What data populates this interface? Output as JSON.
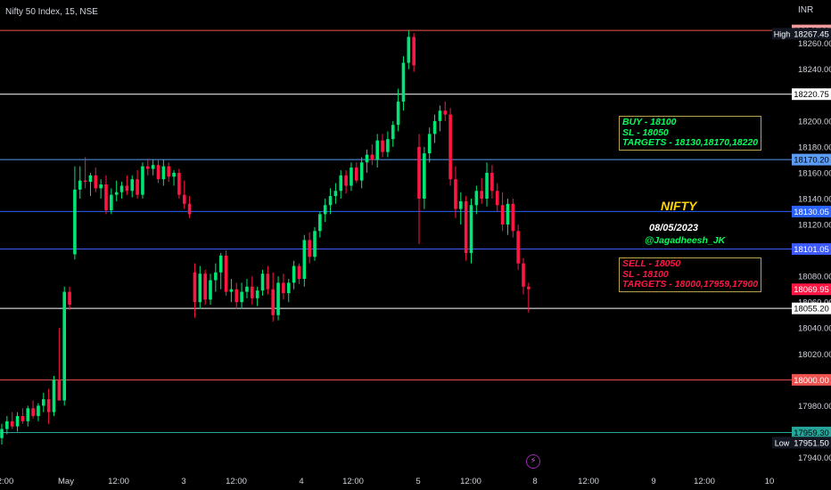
{
  "header": {
    "symbol": "Nifty 50 Index, 15, NSE",
    "currency": "INR"
  },
  "colors": {
    "up": "#00e676",
    "down": "#ff1744",
    "axis_text": "#d1d4dc",
    "buy": "#00ff5a",
    "sell": "#ff1744",
    "title": "#ffd600"
  },
  "chart_data": {
    "type": "candlestick",
    "ylim": [
      17930,
      18277
    ],
    "yticks": [
      "18260.00",
      "18240.00",
      "18220.00",
      "18200.00",
      "18180.00",
      "18160.00",
      "18140.00",
      "18120.00",
      "18100.00",
      "18080.00",
      "18060.00",
      "18040.00",
      "18020.00",
      "18000.00",
      "17980.00",
      "17960.00",
      "17940.00"
    ],
    "xticks": [
      "2:00",
      "May",
      "12:00",
      "3",
      "12:00",
      "4",
      "12:00",
      "5",
      "12:00",
      "8",
      "12:00",
      "9",
      "12:00",
      "10"
    ],
    "level_lines": [
      {
        "price": 18270.0,
        "label": "18270.00",
        "color": "#ef5350",
        "label_bg": "#ef9a9a",
        "label_color": "#000"
      },
      {
        "price": 18220.75,
        "label": "18220.75",
        "color": "#ffffff",
        "label_bg": "#ffffff",
        "label_color": "#000"
      },
      {
        "price": 18170.2,
        "label": "18170.20",
        "color": "#5b9cf6",
        "label_bg": "#5b9cf6",
        "label_color": "#000"
      },
      {
        "price": 18130.05,
        "label": "18130.05",
        "color": "#2962ff",
        "label_bg": "#2962ff",
        "label_color": "#fff"
      },
      {
        "price": 18101.05,
        "label": "18101.05",
        "color": "#3d5afe",
        "label_bg": "#3d5afe",
        "label_color": "#fff"
      },
      {
        "price": 18055.2,
        "label": "18055.20",
        "color": "#ffffff",
        "label_bg": "#ffffff",
        "label_color": "#000"
      },
      {
        "price": 18000.0,
        "label": "18000.00",
        "color": "#ef5350",
        "label_bg": "#ef5350",
        "label_color": "#fff"
      },
      {
        "price": 17959.3,
        "label": "17959.30",
        "color": "#26a69a",
        "label_bg": "#26a69a",
        "label_color": "#000"
      }
    ],
    "price_tags": [
      {
        "name": "High",
        "price": 18267.45,
        "label": "18267.45",
        "bg": "#131722",
        "color": "#fff"
      },
      {
        "name": "",
        "price": 18069.95,
        "label": "18069.95",
        "bg": "#ff1744",
        "color": "#fff"
      },
      {
        "name": "Low",
        "price": 17951.5,
        "label": "17951.50",
        "bg": "#131722",
        "color": "#fff"
      }
    ],
    "candles": [
      {
        "o": 17955,
        "h": 17966,
        "l": 17950,
        "c": 17962
      },
      {
        "o": 17962,
        "h": 17972,
        "l": 17958,
        "c": 17968
      },
      {
        "o": 17968,
        "h": 17975,
        "l": 17962,
        "c": 17964
      },
      {
        "o": 17964,
        "h": 17975,
        "l": 17960,
        "c": 17972
      },
      {
        "o": 17972,
        "h": 17978,
        "l": 17966,
        "c": 17968
      },
      {
        "o": 17968,
        "h": 17980,
        "l": 17964,
        "c": 17978
      },
      {
        "o": 17978,
        "h": 17984,
        "l": 17970,
        "c": 17972
      },
      {
        "o": 17972,
        "h": 17982,
        "l": 17968,
        "c": 17980
      },
      {
        "o": 17980,
        "h": 17990,
        "l": 17975,
        "c": 17985
      },
      {
        "o": 17985,
        "h": 17993,
        "l": 17966,
        "c": 17975
      },
      {
        "o": 17975,
        "h": 18003,
        "l": 17972,
        "c": 18000
      },
      {
        "o": 18000,
        "h": 18040,
        "l": 17985,
        "c": 17984
      },
      {
        "o": 17984,
        "h": 18072,
        "l": 17980,
        "c": 18068
      },
      {
        "o": 18068,
        "h": 18072,
        "l": 18054,
        "c": 18058
      },
      {
        "o": 18097,
        "h": 18165,
        "l": 18093,
        "c": 18147
      },
      {
        "o": 18147,
        "h": 18165,
        "l": 18140,
        "c": 18154
      },
      {
        "o": 18154,
        "h": 18172,
        "l": 18148,
        "c": 18153
      },
      {
        "o": 18153,
        "h": 18160,
        "l": 18142,
        "c": 18158
      },
      {
        "o": 18158,
        "h": 18164,
        "l": 18145,
        "c": 18148
      },
      {
        "o": 18148,
        "h": 18155,
        "l": 18140,
        "c": 18151
      },
      {
        "o": 18151,
        "h": 18158,
        "l": 18128,
        "c": 18131
      },
      {
        "o": 18131,
        "h": 18148,
        "l": 18128,
        "c": 18143
      },
      {
        "o": 18143,
        "h": 18154,
        "l": 18138,
        "c": 18145
      },
      {
        "o": 18145,
        "h": 18153,
        "l": 18140,
        "c": 18150
      },
      {
        "o": 18150,
        "h": 18158,
        "l": 18143,
        "c": 18146
      },
      {
        "o": 18146,
        "h": 18158,
        "l": 18141,
        "c": 18155
      },
      {
        "o": 18155,
        "h": 18162,
        "l": 18140,
        "c": 18143
      },
      {
        "o": 18143,
        "h": 18168,
        "l": 18140,
        "c": 18165
      },
      {
        "o": 18165,
        "h": 18171,
        "l": 18158,
        "c": 18163
      },
      {
        "o": 18163,
        "h": 18170,
        "l": 18158,
        "c": 18166
      },
      {
        "o": 18166,
        "h": 18170,
        "l": 18152,
        "c": 18155
      },
      {
        "o": 18155,
        "h": 18170,
        "l": 18150,
        "c": 18165
      },
      {
        "o": 18165,
        "h": 18168,
        "l": 18153,
        "c": 18157
      },
      {
        "o": 18157,
        "h": 18162,
        "l": 18150,
        "c": 18160
      },
      {
        "o": 18160,
        "h": 18163,
        "l": 18140,
        "c": 18143
      },
      {
        "o": 18143,
        "h": 18154,
        "l": 18132,
        "c": 18136
      },
      {
        "o": 18136,
        "h": 18142,
        "l": 18125,
        "c": 18128
      },
      {
        "o": 18083,
        "h": 18090,
        "l": 18048,
        "c": 18060
      },
      {
        "o": 18060,
        "h": 18088,
        "l": 18055,
        "c": 18082
      },
      {
        "o": 18082,
        "h": 18085,
        "l": 18058,
        "c": 18062
      },
      {
        "o": 18062,
        "h": 18082,
        "l": 18058,
        "c": 18077
      },
      {
        "o": 18077,
        "h": 18090,
        "l": 18068,
        "c": 18083
      },
      {
        "o": 18083,
        "h": 18098,
        "l": 18070,
        "c": 18096
      },
      {
        "o": 18096,
        "h": 18100,
        "l": 18065,
        "c": 18068
      },
      {
        "o": 18068,
        "h": 18078,
        "l": 18060,
        "c": 18070
      },
      {
        "o": 18070,
        "h": 18075,
        "l": 18055,
        "c": 18060
      },
      {
        "o": 18060,
        "h": 18075,
        "l": 18055,
        "c": 18068
      },
      {
        "o": 18068,
        "h": 18078,
        "l": 18063,
        "c": 18072
      },
      {
        "o": 18072,
        "h": 18080,
        "l": 18058,
        "c": 18063
      },
      {
        "o": 18063,
        "h": 18072,
        "l": 18057,
        "c": 18069
      },
      {
        "o": 18069,
        "h": 18085,
        "l": 18065,
        "c": 18082
      },
      {
        "o": 18082,
        "h": 18088,
        "l": 18066,
        "c": 18070
      },
      {
        "o": 18070,
        "h": 18083,
        "l": 18045,
        "c": 18050
      },
      {
        "o": 18050,
        "h": 18080,
        "l": 18046,
        "c": 18075
      },
      {
        "o": 18075,
        "h": 18082,
        "l": 18062,
        "c": 18067
      },
      {
        "o": 18067,
        "h": 18078,
        "l": 18060,
        "c": 18075
      },
      {
        "o": 18075,
        "h": 18092,
        "l": 18070,
        "c": 18088
      },
      {
        "o": 18088,
        "h": 18090,
        "l": 18074,
        "c": 18078
      },
      {
        "o": 18078,
        "h": 18112,
        "l": 18072,
        "c": 18108
      },
      {
        "o": 18108,
        "h": 18114,
        "l": 18090,
        "c": 18095
      },
      {
        "o": 18095,
        "h": 18118,
        "l": 18092,
        "c": 18115
      },
      {
        "o": 18115,
        "h": 18130,
        "l": 18110,
        "c": 18128
      },
      {
        "o": 18128,
        "h": 18140,
        "l": 18122,
        "c": 18135
      },
      {
        "o": 18135,
        "h": 18148,
        "l": 18128,
        "c": 18142
      },
      {
        "o": 18142,
        "h": 18152,
        "l": 18136,
        "c": 18146
      },
      {
        "o": 18146,
        "h": 18162,
        "l": 18140,
        "c": 18158
      },
      {
        "o": 18158,
        "h": 18162,
        "l": 18144,
        "c": 18150
      },
      {
        "o": 18150,
        "h": 18168,
        "l": 18146,
        "c": 18164
      },
      {
        "o": 18164,
        "h": 18168,
        "l": 18152,
        "c": 18154
      },
      {
        "o": 18154,
        "h": 18172,
        "l": 18148,
        "c": 18168
      },
      {
        "o": 18168,
        "h": 18178,
        "l": 18160,
        "c": 18174
      },
      {
        "o": 18174,
        "h": 18182,
        "l": 18166,
        "c": 18170
      },
      {
        "o": 18170,
        "h": 18190,
        "l": 18164,
        "c": 18185
      },
      {
        "o": 18185,
        "h": 18190,
        "l": 18172,
        "c": 18176
      },
      {
        "o": 18176,
        "h": 18192,
        "l": 18172,
        "c": 18186
      },
      {
        "o": 18186,
        "h": 18200,
        "l": 18180,
        "c": 18197
      },
      {
        "o": 18197,
        "h": 18225,
        "l": 18192,
        "c": 18215
      },
      {
        "o": 18215,
        "h": 18250,
        "l": 18208,
        "c": 18245
      },
      {
        "o": 18245,
        "h": 18270,
        "l": 18240,
        "c": 18265
      },
      {
        "o": 18265,
        "h": 18268,
        "l": 18238,
        "c": 18243
      },
      {
        "o": 18180,
        "h": 18190,
        "l": 18105,
        "c": 18140
      },
      {
        "o": 18140,
        "h": 18180,
        "l": 18132,
        "c": 18175
      },
      {
        "o": 18175,
        "h": 18195,
        "l": 18168,
        "c": 18190
      },
      {
        "o": 18190,
        "h": 18205,
        "l": 18183,
        "c": 18200
      },
      {
        "o": 18200,
        "h": 18212,
        "l": 18192,
        "c": 18208
      },
      {
        "o": 18208,
        "h": 18215,
        "l": 18200,
        "c": 18205
      },
      {
        "o": 18205,
        "h": 18210,
        "l": 18150,
        "c": 18155
      },
      {
        "o": 18155,
        "h": 18165,
        "l": 18125,
        "c": 18132
      },
      {
        "o": 18132,
        "h": 18145,
        "l": 18120,
        "c": 18138
      },
      {
        "o": 18138,
        "h": 18142,
        "l": 18092,
        "c": 18098
      },
      {
        "o": 18098,
        "h": 18140,
        "l": 18090,
        "c": 18135
      },
      {
        "o": 18135,
        "h": 18150,
        "l": 18128,
        "c": 18146
      },
      {
        "o": 18146,
        "h": 18156,
        "l": 18136,
        "c": 18140
      },
      {
        "o": 18140,
        "h": 18168,
        "l": 18134,
        "c": 18160
      },
      {
        "o": 18160,
        "h": 18166,
        "l": 18140,
        "c": 18146
      },
      {
        "o": 18146,
        "h": 18152,
        "l": 18130,
        "c": 18135
      },
      {
        "o": 18135,
        "h": 18145,
        "l": 18115,
        "c": 18120
      },
      {
        "o": 18120,
        "h": 18140,
        "l": 18112,
        "c": 18136
      },
      {
        "o": 18136,
        "h": 18140,
        "l": 18110,
        "c": 18115
      },
      {
        "o": 18115,
        "h": 18120,
        "l": 18085,
        "c": 18090
      },
      {
        "o": 18090,
        "h": 18094,
        "l": 18066,
        "c": 18072
      },
      {
        "o": 18072,
        "h": 18075,
        "l": 18052,
        "c": 18070
      }
    ]
  },
  "annotations": {
    "buy_lines": [
      "BUY - 18100",
      "SL - 18050",
      "TARGETS - 18130,18170,18220"
    ],
    "sell_lines": [
      "SELL - 18050",
      "SL - 18100",
      "TARGETS - 18000,17959,17900"
    ],
    "title": "NIFTY",
    "date": "08/05/2023",
    "handle": "@Jagadheesh_JK",
    "bolt_icon": "⚡"
  }
}
